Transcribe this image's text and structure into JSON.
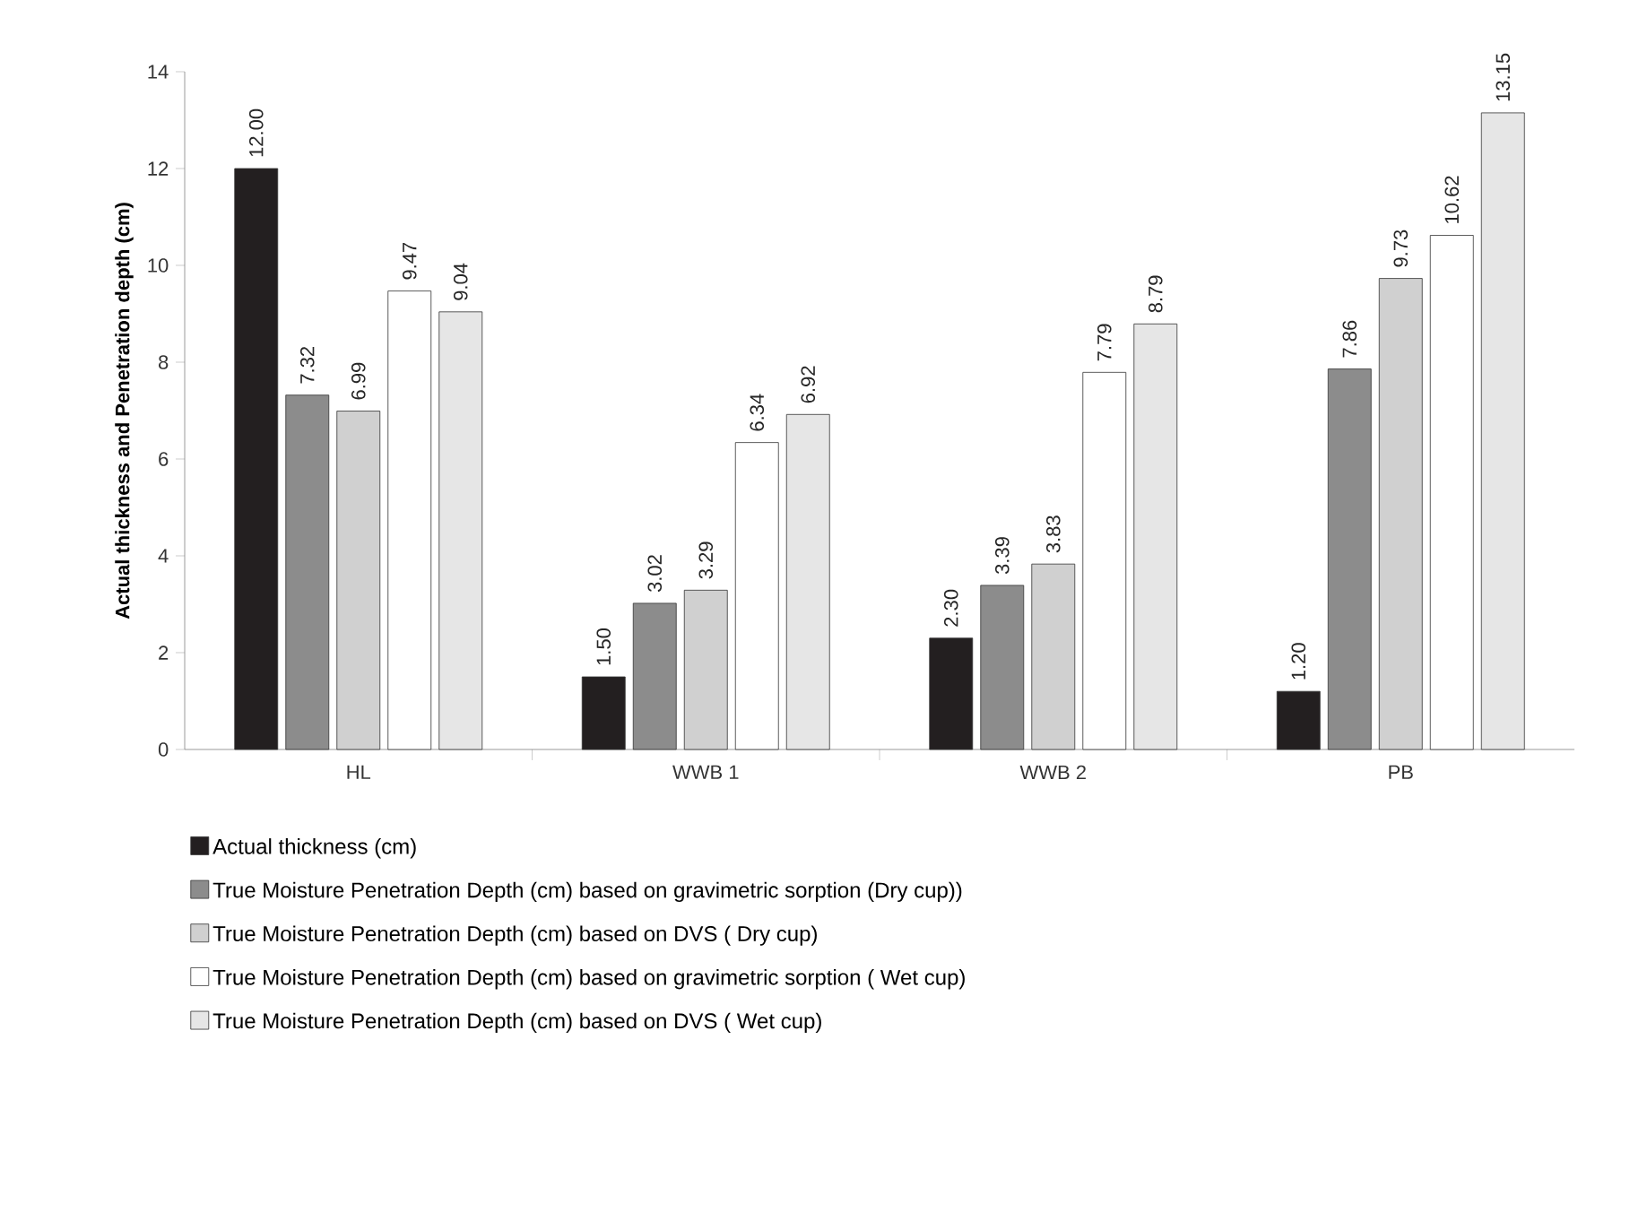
{
  "chart_data": {
    "type": "bar",
    "ylabel": "Actual thickness and Penetration depth (cm)",
    "categories": [
      "HL",
      "WWB 1",
      "WWB 2",
      "PB"
    ],
    "series": [
      {
        "name": "Actual thickness (cm)",
        "color": "#231f20",
        "values": [
          12.0,
          1.5,
          2.3,
          1.2
        ],
        "value_labels": [
          "12.00",
          "1.50",
          "2.30",
          "1.20"
        ]
      },
      {
        "name": "True Moisture Penetration Depth (cm) based on gravimetric sorption (Dry cup))",
        "color": "#8c8c8c",
        "values": [
          7.32,
          3.02,
          3.39,
          7.86
        ],
        "value_labels": [
          "7.32",
          "3.02",
          "3.39",
          "7.86"
        ]
      },
      {
        "name": "True Moisture Penetration Depth (cm) based on DVS ( Dry cup)",
        "color": "#d0d0d0",
        "values": [
          6.99,
          3.29,
          3.83,
          9.73
        ],
        "value_labels": [
          "6.99",
          "3.29",
          "3.83",
          "9.73"
        ]
      },
      {
        "name": "True Moisture Penetration Depth (cm) based on gravimetric sorption ( Wet cup)",
        "color": "#ffffff",
        "values": [
          9.47,
          6.34,
          7.79,
          10.62
        ],
        "value_labels": [
          "9.47",
          "6.34",
          "7.79",
          "10.62"
        ]
      },
      {
        "name": "True Moisture Penetration Depth (cm) based on DVS ( Wet cup)",
        "color": "#e6e6e6",
        "values": [
          9.04,
          6.92,
          8.79,
          13.15
        ],
        "value_labels": [
          "9.04",
          "6.92",
          "8.79",
          "13.15"
        ]
      }
    ],
    "ylim": [
      0,
      14
    ],
    "yticks": [
      0,
      2,
      4,
      6,
      8,
      10,
      12,
      14
    ],
    "legend": "bottom",
    "grid": false
  }
}
